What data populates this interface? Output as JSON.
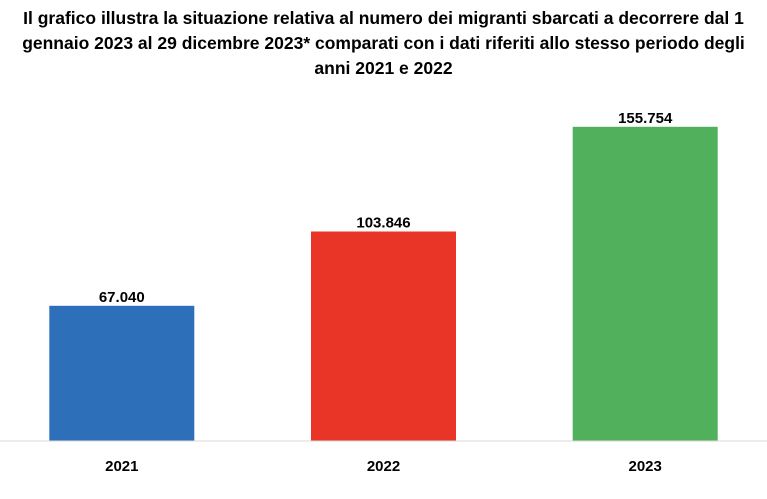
{
  "chart_data": {
    "type": "bar",
    "title_lines": [
      "Il grafico illustra la situazione relativa al numero dei migranti sbarcati a decorrere dal 1",
      "gennaio 2023 al 29 dicembre 2023* comparati con i dati riferiti allo stesso periodo degli",
      "anni 2021 e 2022"
    ],
    "categories": [
      "2021",
      "2022",
      "2023"
    ],
    "values": [
      67040,
      103846,
      155754
    ],
    "value_labels": [
      "67.040",
      "103.846",
      "155.754"
    ],
    "colors": [
      "#2E6FBA",
      "#E83527",
      "#51B05C"
    ],
    "xlabel": "",
    "ylabel": "",
    "ylim": [
      0,
      175000
    ],
    "grid": false,
    "legend": "none"
  }
}
